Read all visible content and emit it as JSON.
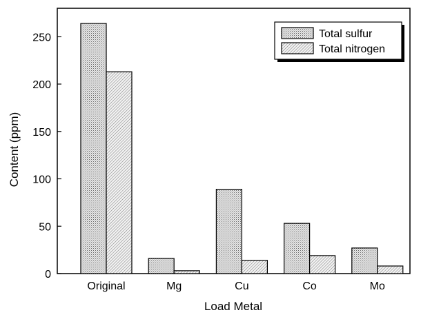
{
  "chart_data": {
    "type": "bar",
    "title": "",
    "xlabel": "Load Metal",
    "ylabel": "Content (ppm)",
    "ylim": [
      0,
      280
    ],
    "yticks": [
      0,
      50,
      100,
      150,
      200,
      250
    ],
    "categories": [
      "Original",
      "Mg",
      "Cu",
      "Co",
      "Mo"
    ],
    "series": [
      {
        "name": "Total sulfur",
        "values": [
          264,
          16,
          89,
          53,
          27
        ],
        "pattern": "dots"
      },
      {
        "name": "Total nitrogen",
        "values": [
          213,
          3,
          14,
          19,
          8
        ],
        "pattern": "diagonal-hatch"
      }
    ],
    "legend_position": "top-right",
    "grid": false
  },
  "colors": {
    "bar_fill": "#e6e6e6",
    "pattern_ink": "#707070",
    "frame": "#000000"
  }
}
